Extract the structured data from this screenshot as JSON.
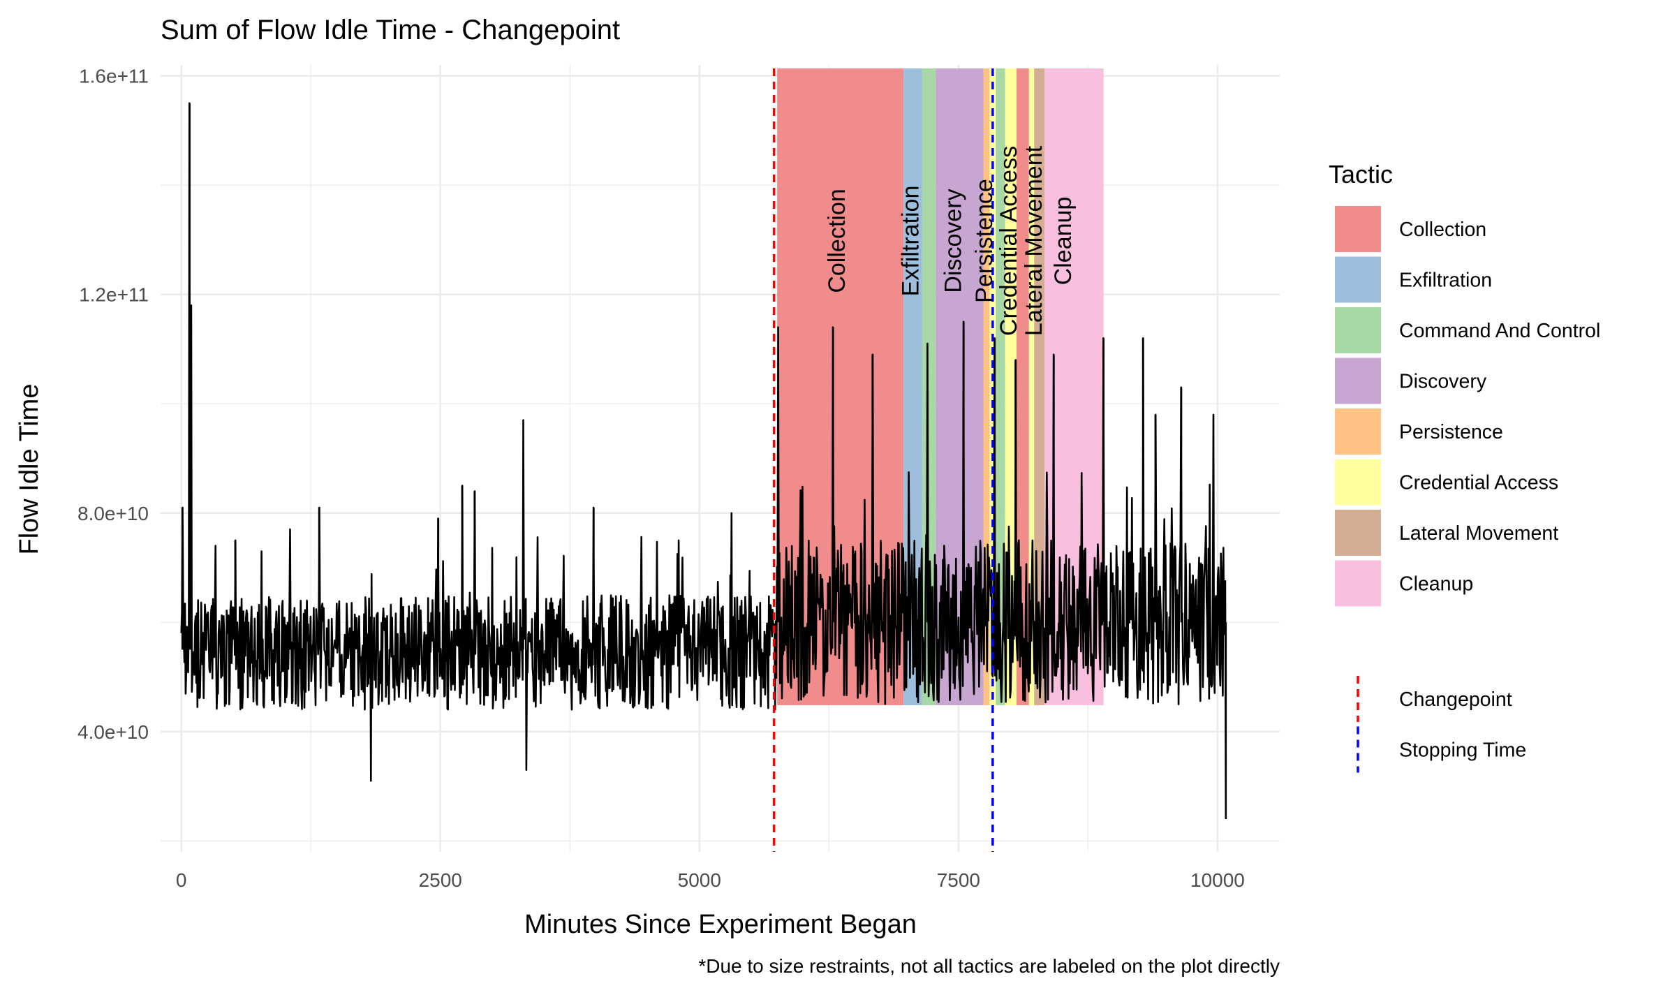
{
  "chart_data": {
    "type": "line",
    "title": "Sum of Flow Idle Time - Changepoint",
    "xlabel": "Minutes Since Experiment Began",
    "ylabel": "Flow Idle Time",
    "caption": "*Due to size restraints, not all tactics are labeled on the plot directly",
    "xlim": [
      -200,
      10600
    ],
    "ylim": [
      18000000000,
      162000000000
    ],
    "x_ticks": [
      0,
      2500,
      5000,
      7500,
      10000
    ],
    "x_tick_labels": [
      "0",
      "2500",
      "5000",
      "7500",
      "10000"
    ],
    "y_ticks": [
      40000000000,
      80000000000,
      120000000000,
      160000000000
    ],
    "y_tick_labels": [
      "4.0e+10",
      "8.0e+10",
      "1.2e+11",
      "1.6e+11"
    ],
    "grid": true,
    "legend_position": "right",
    "legend_title": "Tactic",
    "tactics": [
      {
        "name": "Collection",
        "color": "#F08C8C"
      },
      {
        "name": "Exfiltration",
        "color": "#9DBFDC"
      },
      {
        "name": "Command And Control",
        "color": "#A8D8A5"
      },
      {
        "name": "Discovery",
        "color": "#C8A6D2"
      },
      {
        "name": "Persistence",
        "color": "#FFC285"
      },
      {
        "name": "Credential Access",
        "color": "#FFFFA0"
      },
      {
        "name": "Lateral Movement",
        "color": "#D3AD94"
      },
      {
        "name": "Cleanup",
        "color": "#F9BFDF"
      }
    ],
    "tactic_bands": [
      {
        "tactic": "Collection",
        "start": 5750,
        "end": 6970
      },
      {
        "tactic": "Exfiltration",
        "start": 6970,
        "end": 7150
      },
      {
        "tactic": "Command And Control",
        "start": 7150,
        "end": 7280
      },
      {
        "tactic": "Discovery",
        "start": 7280,
        "end": 7740
      },
      {
        "tactic": "Persistence",
        "start": 7740,
        "end": 7800
      },
      {
        "tactic": "Credential Access",
        "start": 7800,
        "end": 7860
      },
      {
        "tactic": "Command And Control",
        "start": 7860,
        "end": 7950
      },
      {
        "tactic": "Credential Access",
        "start": 7950,
        "end": 8060
      },
      {
        "tactic": "Collection",
        "start": 8060,
        "end": 8180
      },
      {
        "tactic": "Credential Access",
        "start": 8180,
        "end": 8230
      },
      {
        "tactic": "Lateral Movement",
        "start": 8230,
        "end": 8330
      },
      {
        "tactic": "Cleanup",
        "start": 8330,
        "end": 8900
      }
    ],
    "band_labels": [
      {
        "text": "Collection",
        "x": 6330
      },
      {
        "text": "Exfiltration",
        "x": 7040
      },
      {
        "text": "Discovery",
        "x": 7450
      },
      {
        "text": "Persistence",
        "x": 7750
      },
      {
        "text": "Credential Access",
        "x": 7985
      },
      {
        "text": "Lateral Movement",
        "x": 8230
      },
      {
        "text": "Cleanup",
        "x": 8510
      }
    ],
    "vlines": [
      {
        "name": "Changepoint",
        "x": 5720,
        "color": "#FF0000"
      },
      {
        "name": "Stopping Time",
        "x": 7830,
        "color": "#0000FF"
      }
    ],
    "series": [
      {
        "name": "Sum of Flow Idle Time",
        "color": "#000000",
        "x_range": [
          0,
          10080
        ],
        "baseline_segments": [
          {
            "x_start": 0,
            "x_end": 5740,
            "center": 55000000000,
            "low": 44000000000,
            "high": 65000000000
          },
          {
            "x_start": 5740,
            "x_end": 10080,
            "center": 60000000000,
            "low": 45000000000,
            "high": 75000000000
          }
        ],
        "spikes": [
          {
            "x": 10,
            "y": 81000000000
          },
          {
            "x": 80,
            "y": 155000000000
          },
          {
            "x": 95,
            "y": 118000000000
          },
          {
            "x": 330,
            "y": 74000000000
          },
          {
            "x": 520,
            "y": 75000000000
          },
          {
            "x": 1050,
            "y": 77000000000
          },
          {
            "x": 1330,
            "y": 81000000000
          },
          {
            "x": 1830,
            "y": 31000000000
          },
          {
            "x": 2480,
            "y": 79000000000
          },
          {
            "x": 2710,
            "y": 85000000000
          },
          {
            "x": 2830,
            "y": 84000000000
          },
          {
            "x": 3300,
            "y": 97000000000
          },
          {
            "x": 3330,
            "y": 33000000000
          },
          {
            "x": 3980,
            "y": 81000000000
          },
          {
            "x": 4800,
            "y": 75000000000
          },
          {
            "x": 5310,
            "y": 80000000000
          },
          {
            "x": 5760,
            "y": 114000000000
          },
          {
            "x": 6290,
            "y": 114000000000
          },
          {
            "x": 6670,
            "y": 109000000000
          },
          {
            "x": 7200,
            "y": 111000000000
          },
          {
            "x": 7550,
            "y": 115000000000
          },
          {
            "x": 7850,
            "y": 112000000000
          },
          {
            "x": 8050,
            "y": 108000000000
          },
          {
            "x": 8420,
            "y": 109000000000
          },
          {
            "x": 8900,
            "y": 112000000000
          },
          {
            "x": 9280,
            "y": 112000000000
          },
          {
            "x": 9400,
            "y": 98000000000
          },
          {
            "x": 9650,
            "y": 103000000000
          },
          {
            "x": 9960,
            "y": 98000000000
          },
          {
            "x": 10080,
            "y": 24000000000
          }
        ]
      }
    ]
  }
}
